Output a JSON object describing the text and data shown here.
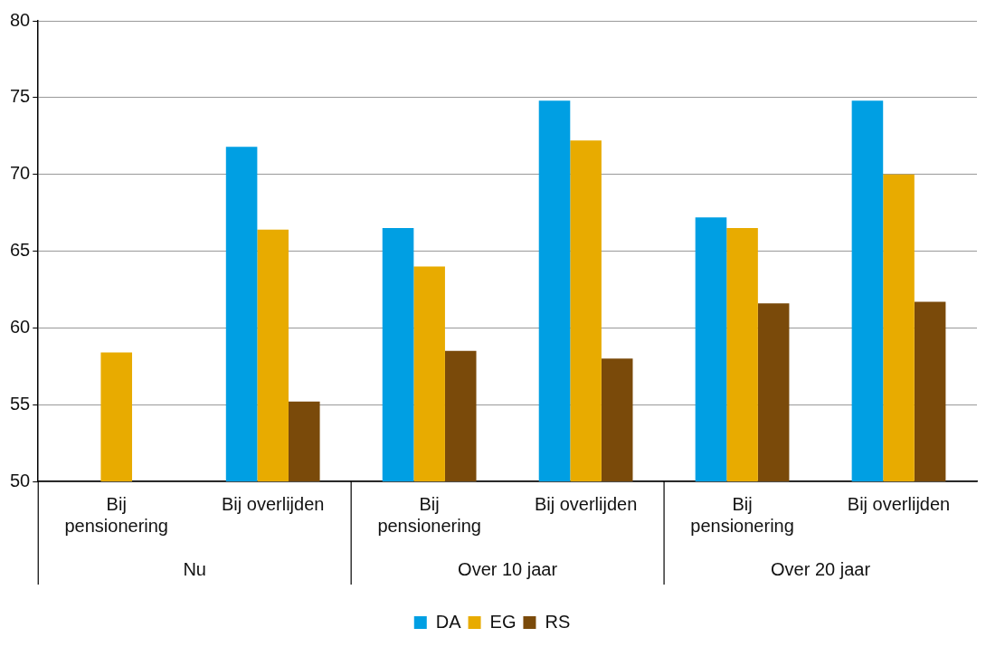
{
  "chart_data": {
    "type": "bar",
    "categories": [
      "Bij pensionering",
      "Bij overlijden",
      "Bij pensionering",
      "Bij overlijden",
      "Bij pensionering",
      "Bij overlijden"
    ],
    "annotations": [
      "Nu",
      "Over 10 jaar",
      "Over 20 jaar"
    ],
    "series": [
      {
        "name": "DA",
        "color": "#009fe3",
        "values": [
          null,
          71.8,
          66.5,
          74.8,
          67.2,
          74.8
        ]
      },
      {
        "name": "EG",
        "color": "#e8ab00",
        "values": [
          58.4,
          66.4,
          64.0,
          72.2,
          66.5,
          70.0
        ]
      },
      {
        "name": "RS",
        "color": "#7a4a0a",
        "values": [
          null,
          55.2,
          58.5,
          58.0,
          61.6,
          61.7
        ]
      }
    ],
    "ylim": [
      50,
      80
    ],
    "yticks": [
      50,
      55,
      60,
      65,
      70,
      75,
      80
    ],
    "grid": "y",
    "legend": "bottom"
  }
}
